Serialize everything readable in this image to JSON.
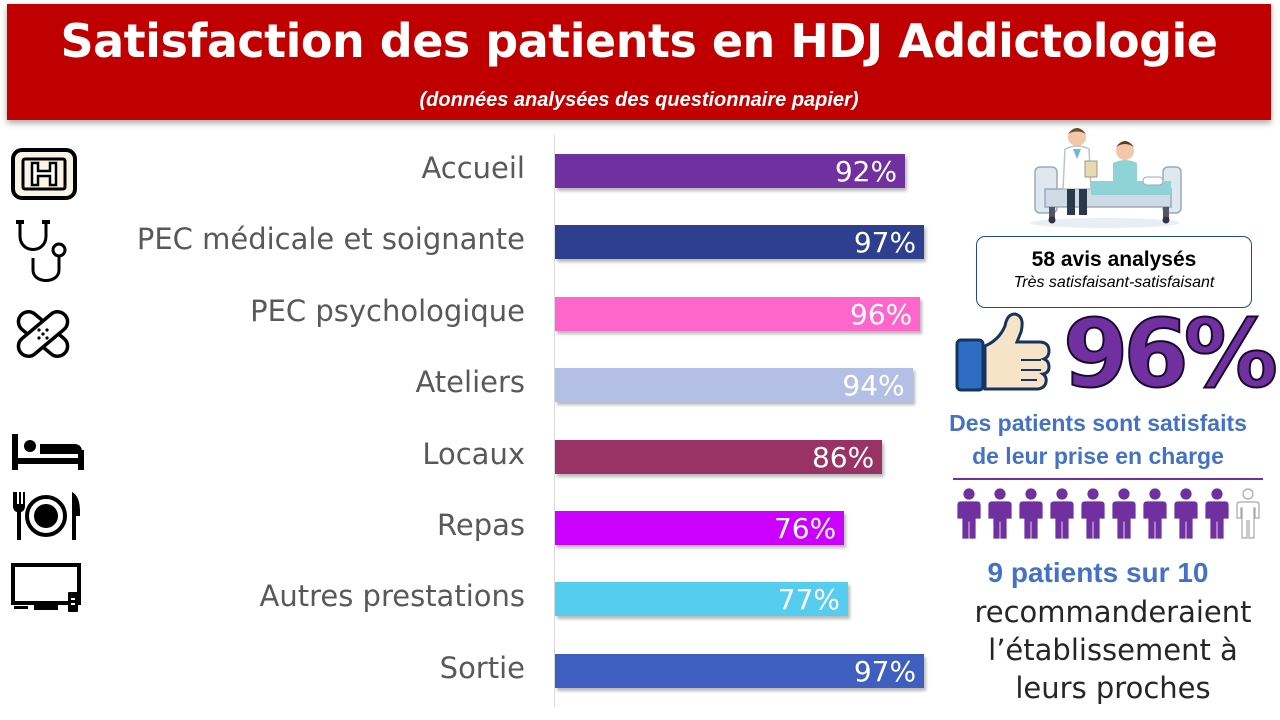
{
  "header": {
    "title": "Satisfaction des patients en HDJ Addictologie",
    "subtitle": "(données analysées des questionnaire papier)"
  },
  "chart_data": {
    "type": "bar",
    "orientation": "horizontal",
    "categories": [
      "Accueil",
      "PEC médicale et soignante",
      "PEC psychologique",
      "Ateliers",
      "Locaux",
      "Repas",
      "Autres prestations",
      "Sortie"
    ],
    "values": [
      92,
      97,
      96,
      94,
      86,
      76,
      77,
      97
    ],
    "value_labels": [
      "92%",
      "97%",
      "96%",
      "94%",
      "86%",
      "76%",
      "77%",
      "97%"
    ],
    "bar_colors": [
      "#7030a0",
      "#2f3f8f",
      "#ff66cc",
      "#b4bfe6",
      "#993366",
      "#cc00ff",
      "#55cdee",
      "#3f5fc0"
    ],
    "xlim": [
      0,
      100
    ],
    "grid": false,
    "legend": "none"
  },
  "category_icons": [
    "hospital-icon",
    "stethoscope-icon",
    "bandage-icon",
    "none",
    "bed-icon",
    "plate-icon",
    "tv-icon",
    "none"
  ],
  "summary": {
    "reviews_count": "58 avis analysés",
    "reviews_note": "Très satisfaisant-satisfaisant",
    "big_percent": "96%",
    "satisfied_line1": "Des patients sont satisfaits",
    "satisfied_line2": "de leur prise en charge",
    "people_filled": 9,
    "people_total": 10,
    "recommend_count": "9 patients sur 10",
    "recommend_line1": "recommanderaient",
    "recommend_line2": "l’établissement à",
    "recommend_line3": "leurs proches"
  },
  "colors": {
    "header_bg": "#c00000",
    "accent_purple": "#7030a0",
    "text_blue": "#4472c4"
  }
}
